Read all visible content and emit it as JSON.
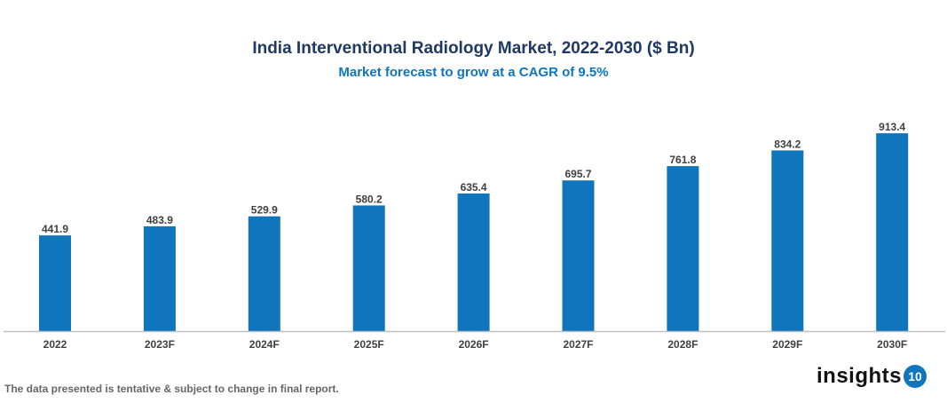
{
  "chart_data": {
    "type": "bar",
    "title": "India Interventional Radiology Market, 2022-2030 ($ Bn)",
    "subtitle": "Market forecast to grow at a CAGR of 9.5%",
    "categories": [
      "2022",
      "2023F",
      "2024F",
      "2025F",
      "2026F",
      "2027F",
      "2028F",
      "2029F",
      "2030F"
    ],
    "values": [
      441.9,
      483.9,
      529.9,
      580.2,
      635.4,
      695.7,
      761.8,
      834.2,
      913.4
    ],
    "data_labels": [
      "441.9",
      "483.9",
      "529.9",
      "580.2",
      "635.4",
      "695.7",
      "761.8",
      "834.2",
      "913.4"
    ],
    "ylim": [
      0,
      1000
    ],
    "grid": false,
    "y_axis_visible": false,
    "bar_color": "#0f75bc"
  },
  "footnote": "The data presented is tentative & subject to change in final report.",
  "logo": {
    "text": "insights",
    "badge": "10"
  }
}
